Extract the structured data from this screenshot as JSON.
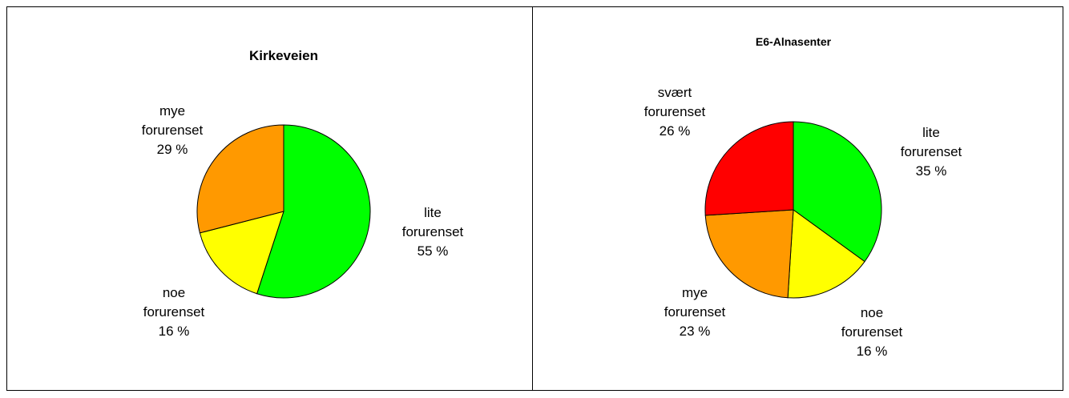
{
  "chart_data": [
    {
      "type": "pie",
      "title": "Kirkeveien",
      "categories": [
        "lite forurenset",
        "noe forurenset",
        "mye forurenset"
      ],
      "values": [
        55,
        16,
        29
      ],
      "value_labels": [
        "55 %",
        "16 %",
        "29 %"
      ],
      "colors": [
        "#00ff00",
        "#ffff00",
        "#ff9900"
      ]
    },
    {
      "type": "pie",
      "title": "E6-Alnasenter",
      "categories": [
        "lite forurenset",
        "noe forurenset",
        "mye forurenset",
        "svært forurenset"
      ],
      "values": [
        35,
        16,
        23,
        26
      ],
      "value_labels": [
        "35 %",
        "16 %",
        "23 %",
        "26 %"
      ],
      "colors": [
        "#00ff00",
        "#ffff00",
        "#ff9900",
        "#ff0000"
      ]
    }
  ]
}
